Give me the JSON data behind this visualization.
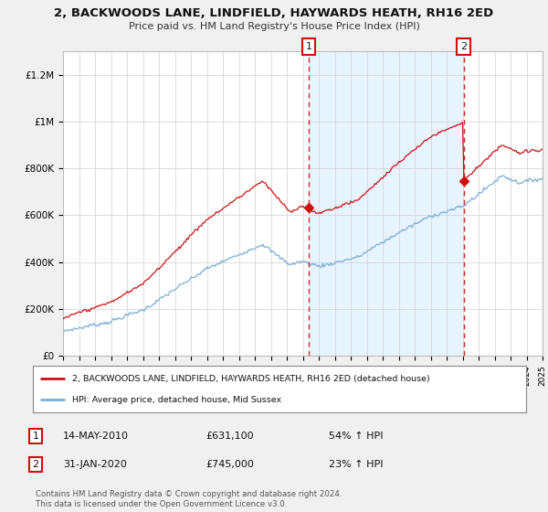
{
  "title": "2, BACKWOODS LANE, LINDFIELD, HAYWARDS HEATH, RH16 2ED",
  "subtitle": "Price paid vs. HM Land Registry's House Price Index (HPI)",
  "legend_line1": "2, BACKWOODS LANE, LINDFIELD, HAYWARDS HEATH, RH16 2ED (detached house)",
  "legend_line2": "HPI: Average price, detached house, Mid Sussex",
  "annotation1_date": "14-MAY-2010",
  "annotation1_price": "£631,100",
  "annotation1_hpi": "54% ↑ HPI",
  "annotation2_date": "31-JAN-2020",
  "annotation2_price": "£745,000",
  "annotation2_hpi": "23% ↑ HPI",
  "footer": "Contains HM Land Registry data © Crown copyright and database right 2024.\nThis data is licensed under the Open Government Licence v3.0.",
  "hpi_color": "#7aadd4",
  "price_color": "#cc1111",
  "dashed_line_color": "#cc1111",
  "shade_color": "#ddeeff",
  "background_color": "#f0f0f0",
  "plot_background": "#ffffff",
  "ylim": [
    0,
    1300000
  ],
  "yticks": [
    0,
    200000,
    400000,
    600000,
    800000,
    1000000,
    1200000
  ],
  "ytick_labels": [
    "£0",
    "£200K",
    "£400K",
    "£600K",
    "£800K",
    "£1M",
    "£1.2M"
  ],
  "sale1_year": 2010.37,
  "sale1_price": 631100,
  "sale2_year": 2020.08,
  "sale2_price": 745000
}
